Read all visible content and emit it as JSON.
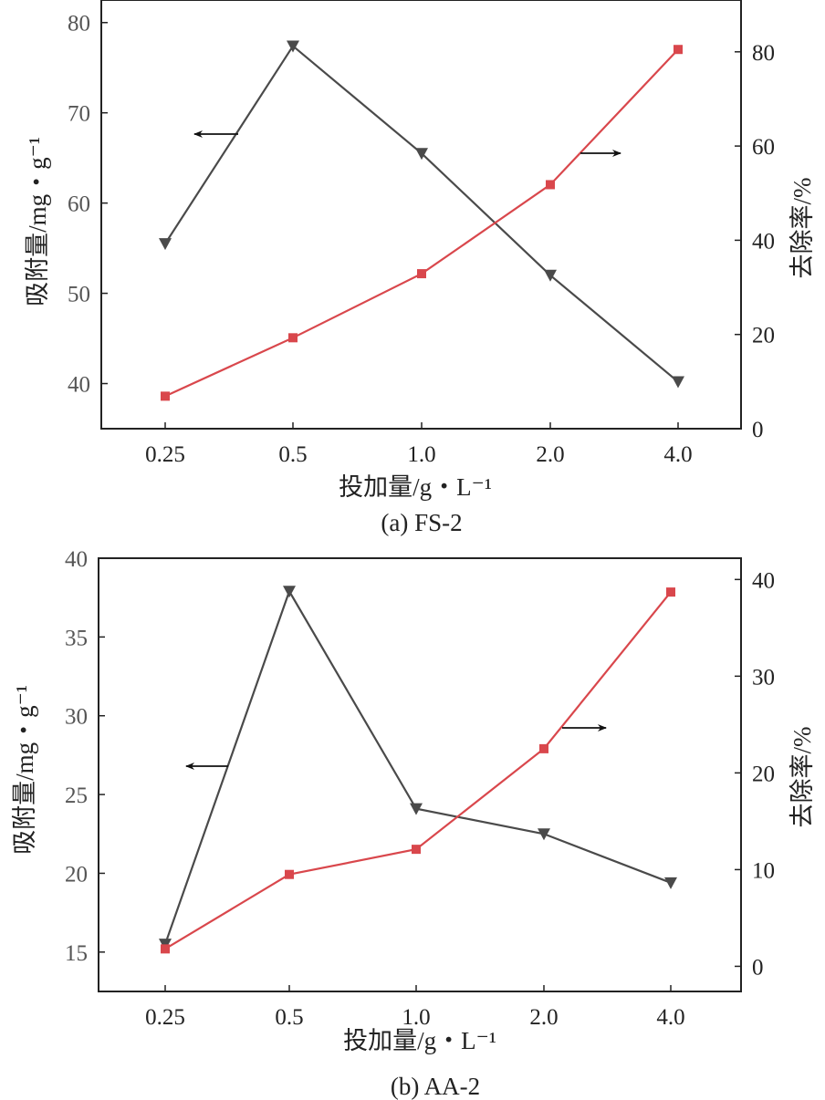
{
  "chart_data": [
    {
      "type": "line",
      "caption": "(a) FS-2",
      "categories": [
        "0.25",
        "0.5",
        "1.0",
        "2.0",
        "4.0"
      ],
      "xlabel": "投加量/g・L⁻¹",
      "ylabel_left": "吸附量/mg・g⁻¹",
      "ylabel_right": "去除率/%",
      "ylim_left": [
        35,
        82.5
      ],
      "yticks_left": [
        40,
        50,
        60,
        70,
        80
      ],
      "ylim_right": [
        0,
        91
      ],
      "yticks_right": [
        0,
        20,
        40,
        60,
        80
      ],
      "grid": false,
      "series": [
        {
          "axis": "left",
          "marker": "triangle-down",
          "color": "#4a4a4a",
          "values": [
            55.5,
            77.4,
            65.5,
            52.0,
            40.2
          ]
        },
        {
          "axis": "right",
          "marker": "square",
          "color": "#d9474c",
          "values": [
            6.9,
            19.3,
            32.9,
            51.8,
            80.5
          ]
        }
      ]
    },
    {
      "type": "line",
      "caption": "(b) AA-2",
      "categories": [
        "0.25",
        "0.5",
        "1.0",
        "2.0",
        "4.0"
      ],
      "xlabel": "投加量/g・L⁻¹",
      "ylabel_left": "吸附量/mg・g⁻¹",
      "ylabel_right": "去除率/%",
      "ylim_left": [
        12.5,
        40
      ],
      "yticks_left": [
        15,
        20,
        25,
        30,
        35,
        40
      ],
      "ylim_right": [
        -2.6,
        42.2
      ],
      "yticks_right": [
        0,
        10,
        20,
        30,
        40
      ],
      "grid": false,
      "series": [
        {
          "axis": "left",
          "marker": "triangle-down",
          "color": "#4a4a4a",
          "values": [
            15.5,
            37.9,
            24.1,
            22.5,
            19.4
          ]
        },
        {
          "axis": "right",
          "marker": "square",
          "color": "#d9474c",
          "values": [
            1.8,
            9.5,
            12.1,
            22.5,
            38.7
          ]
        }
      ]
    }
  ]
}
